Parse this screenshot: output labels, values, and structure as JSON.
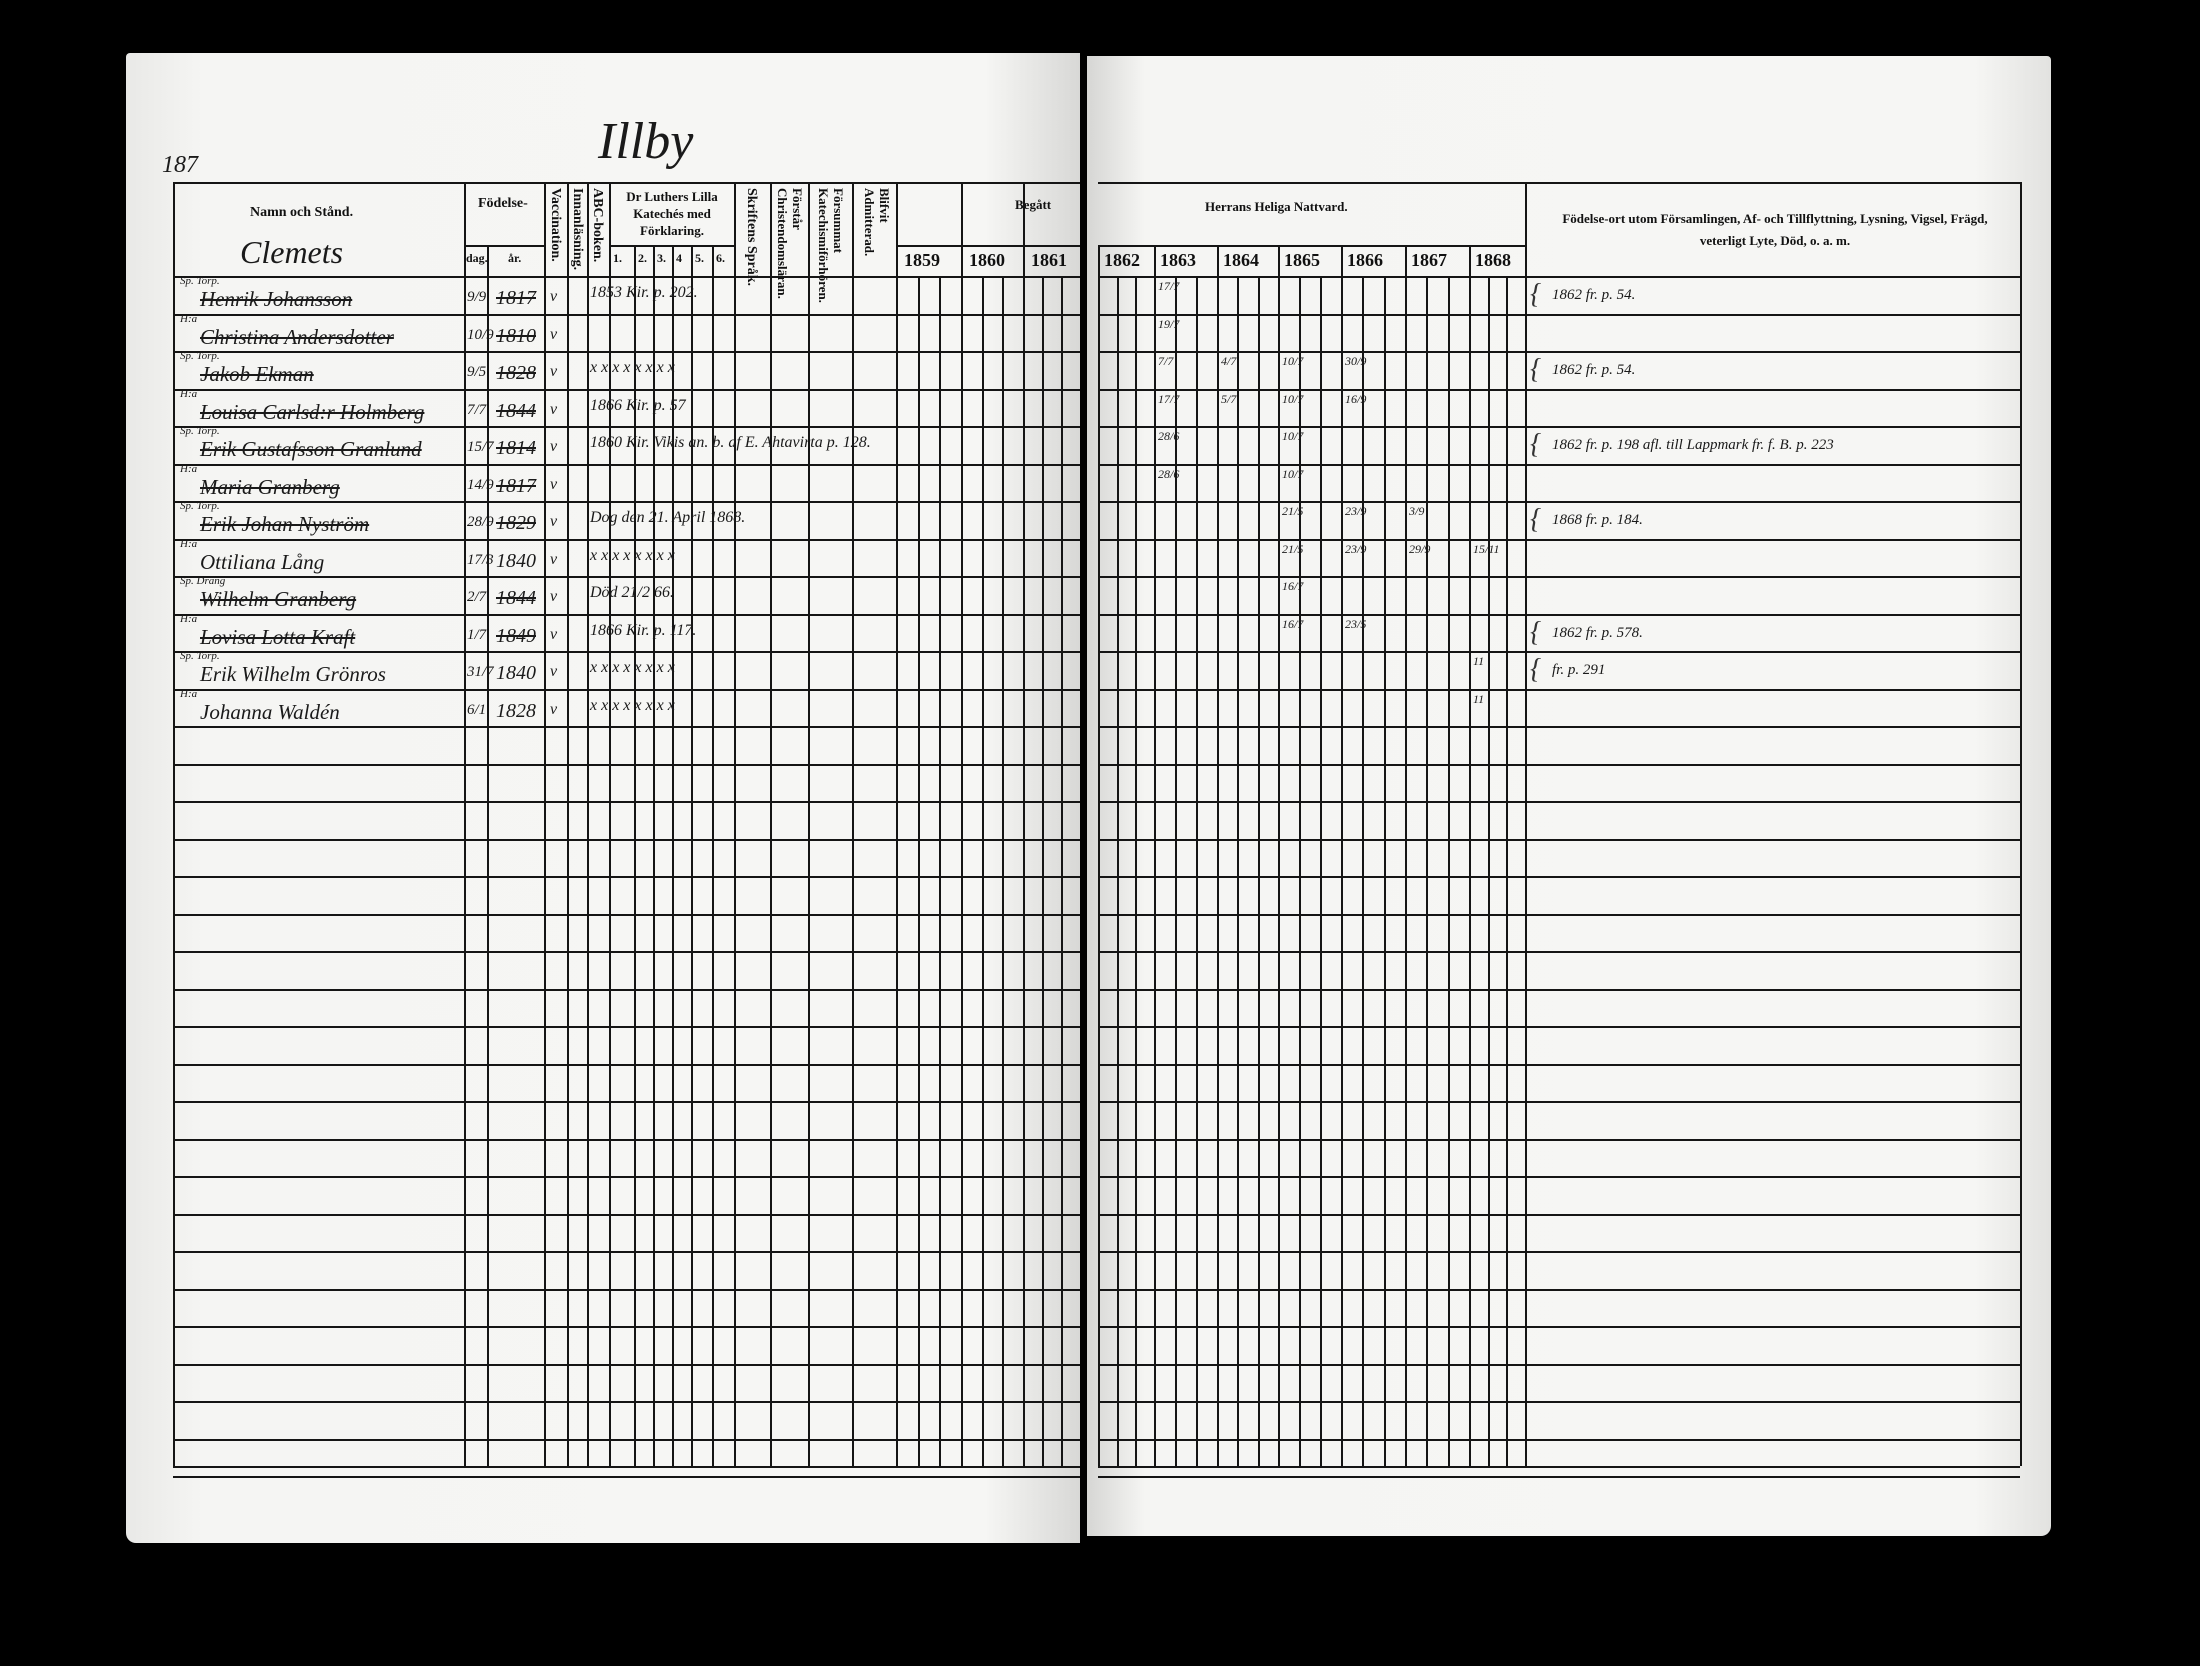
{
  "left_page": {
    "page_number": "187",
    "village": "Illby",
    "section_name": "Clemets",
    "headers": {
      "name": "Namn och Stånd.",
      "birth": "Födelse-",
      "birth_day": "dag.",
      "birth_year": "år.",
      "vaccination": "Vaccination.",
      "reading": "Innanläsning.",
      "abc": "ABC-boken.",
      "catechism": "Dr Luthers Lilla Katechés med Förklaring.",
      "catechism_parts": [
        "1.",
        "2.",
        "3.",
        "4",
        "5.",
        "6."
      ],
      "scripture": "Skriftens Språk.",
      "understands": "Förstår Christendomsläran.",
      "missed": "Försummat Katechismiförhören.",
      "admitted": "Blifvit Admitterad.",
      "visited": "Begått",
      "years": [
        "1859",
        "1860",
        "1861"
      ]
    },
    "entries": [
      {
        "title": "Sp. Torp.",
        "name": "Henrik Johansson",
        "day": "9/9",
        "year": "1817",
        "vacc": "v",
        "note": "1853 Kir. p. 202.",
        "struck": true
      },
      {
        "title": "H:a",
        "name": "Christina Andersdotter",
        "day": "10/9",
        "year": "1810",
        "vacc": "v",
        "note": "",
        "struck": true
      },
      {
        "title": "Sp. Torp.",
        "name": "Jakob Ekman",
        "day": "9/5",
        "year": "1828",
        "vacc": "v",
        "note": "x x x x x x x x",
        "struck": true
      },
      {
        "title": "H:a",
        "name": "Louisa Carlsd:r Holmberg",
        "day": "7/7",
        "year": "1844",
        "vacc": "v",
        "note": "1866 Kir. p. 57",
        "struck": true
      },
      {
        "title": "Sp. Torp.",
        "name": "Erik Gustafsson Granlund",
        "day": "15/7",
        "year": "1814",
        "vacc": "v",
        "note": "1860 Kir. Vikis an. b. af E. Ahtavirta p. 128.",
        "struck": true
      },
      {
        "title": "H:a",
        "name": "Maria Granberg",
        "day": "14/9",
        "year": "1817",
        "vacc": "v",
        "note": "",
        "struck": true
      },
      {
        "title": "Sp. Torp.",
        "name": "Erik Johan Nyström",
        "day": "28/9",
        "year": "1829",
        "vacc": "v",
        "note": "Dog den 21. April 1868.",
        "struck": true
      },
      {
        "title": "H:a",
        "name": "Ottiliana Lång",
        "day": "17/3",
        "year": "1840",
        "vacc": "v",
        "note": "x x x x x x x x",
        "struck": false
      },
      {
        "title": "Sp. Dräng",
        "name": "Wilhelm Granberg",
        "day": "2/7",
        "year": "1844",
        "vacc": "v",
        "note": "Död 21/2 66.",
        "struck": true
      },
      {
        "title": "H:a",
        "name": "Lovisa Lotta Kraft",
        "day": "1/7",
        "year": "1849",
        "vacc": "v",
        "note": "1866 Kir. p. 117.",
        "struck": true
      },
      {
        "title": "Sp. Torp.",
        "name": "Erik Wilhelm Grönros",
        "day": "31/7",
        "year": "1840",
        "vacc": "v",
        "note": "x x x x x x x x",
        "struck": false
      },
      {
        "title": "H:a",
        "name": "Johanna Waldén",
        "day": "6/1",
        "year": "1828",
        "vacc": "v",
        "note": "x x x x x x x x",
        "struck": false
      }
    ]
  },
  "right_page": {
    "headers": {
      "communion": "Herrans Heliga Nattvard.",
      "years": [
        "1862",
        "1863",
        "1864",
        "1865",
        "1866",
        "1867",
        "1868"
      ],
      "remarks": "Födelse-ort utom Församlingen, Af- och Tillflyttning, Lysning, Vigsel, Frägd, veterligt Lyte, Död, o. a. m."
    },
    "communion_marks": [
      {
        "row": 0,
        "col": 1,
        "text": "17/7"
      },
      {
        "row": 1,
        "col": 1,
        "text": "19/7"
      },
      {
        "row": 2,
        "col": 1,
        "text": "7/7"
      },
      {
        "row": 2,
        "col": 2,
        "text": "4/7"
      },
      {
        "row": 2,
        "col": 3,
        "text": "10/7"
      },
      {
        "row": 2,
        "col": 4,
        "text": "30/9"
      },
      {
        "row": 3,
        "col": 1,
        "text": "17/7"
      },
      {
        "row": 3,
        "col": 2,
        "text": "5/7"
      },
      {
        "row": 3,
        "col": 3,
        "text": "10/7"
      },
      {
        "row": 3,
        "col": 4,
        "text": "16/9"
      },
      {
        "row": 4,
        "col": 1,
        "text": "28/6"
      },
      {
        "row": 4,
        "col": 3,
        "text": "10/7"
      },
      {
        "row": 5,
        "col": 1,
        "text": "28/6"
      },
      {
        "row": 5,
        "col": 3,
        "text": "10/7"
      },
      {
        "row": 6,
        "col": 3,
        "text": "21/5"
      },
      {
        "row": 6,
        "col": 4,
        "text": "23/9"
      },
      {
        "row": 6,
        "col": 5,
        "text": "3/9"
      },
      {
        "row": 7,
        "col": 3,
        "text": "21/5"
      },
      {
        "row": 7,
        "col": 4,
        "text": "23/9"
      },
      {
        "row": 7,
        "col": 5,
        "text": "29/9"
      },
      {
        "row": 7,
        "col": 6,
        "text": "15/11"
      },
      {
        "row": 8,
        "col": 3,
        "text": "16/7"
      },
      {
        "row": 9,
        "col": 3,
        "text": "16/7"
      },
      {
        "row": 9,
        "col": 4,
        "text": "23/5"
      },
      {
        "row": 10,
        "col": 6,
        "text": "11"
      },
      {
        "row": 11,
        "col": 6,
        "text": "11"
      }
    ],
    "remarks": [
      {
        "row": 0,
        "text": "1862 fr. p. 54."
      },
      {
        "row": 2,
        "text": "1862 fr. p. 54."
      },
      {
        "row": 4,
        "text": "1862 fr. p. 198 afl. till Lappmark fr. f. B. p. 223"
      },
      {
        "row": 6,
        "text": "1868 fr. p. 184."
      },
      {
        "row": 9,
        "text": "1862 fr. p. 578."
      },
      {
        "row": 10,
        "text": "fr. p. 291"
      }
    ]
  }
}
